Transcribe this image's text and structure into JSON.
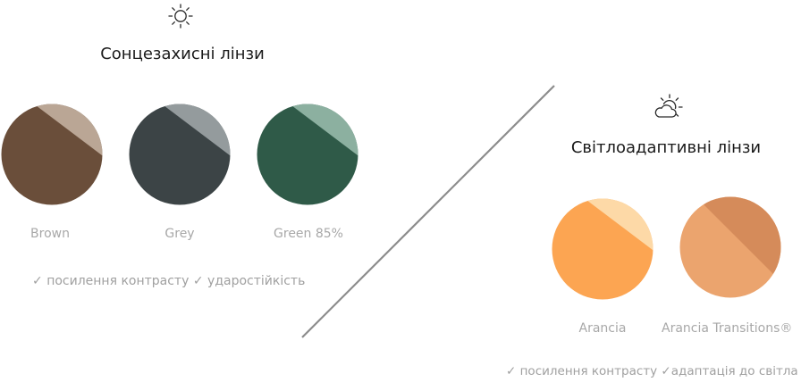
{
  "sun": {
    "icon": "sun-icon",
    "title": "Сонцезахисні лінзи",
    "lenses": [
      {
        "label": "Brown",
        "color": "#6a4e3a",
        "highlight": "#c8b6a6"
      },
      {
        "label": "Grey",
        "color": "#3c4446",
        "highlight": "#a3aaad"
      },
      {
        "label": "Green 85%",
        "color": "#2f5a48",
        "highlight": "#9cbfb0"
      }
    ],
    "features": [
      "посилення контрасту",
      "ударостійкість"
    ]
  },
  "photo": {
    "icon": "sun-cloud-icon",
    "title": "Світлоадаптивні лінзи",
    "lenses": [
      {
        "label": "Arancia",
        "color": "#fca552",
        "highlight": "#fde2b6"
      },
      {
        "label": "Arancia Transitions®",
        "color": "#eba46e",
        "highlight": "#d18757"
      }
    ],
    "features": [
      "посилення контрасту",
      "адаптація до світла"
    ]
  },
  "check_mark": "✓",
  "divider_color": "#8c8c8c"
}
